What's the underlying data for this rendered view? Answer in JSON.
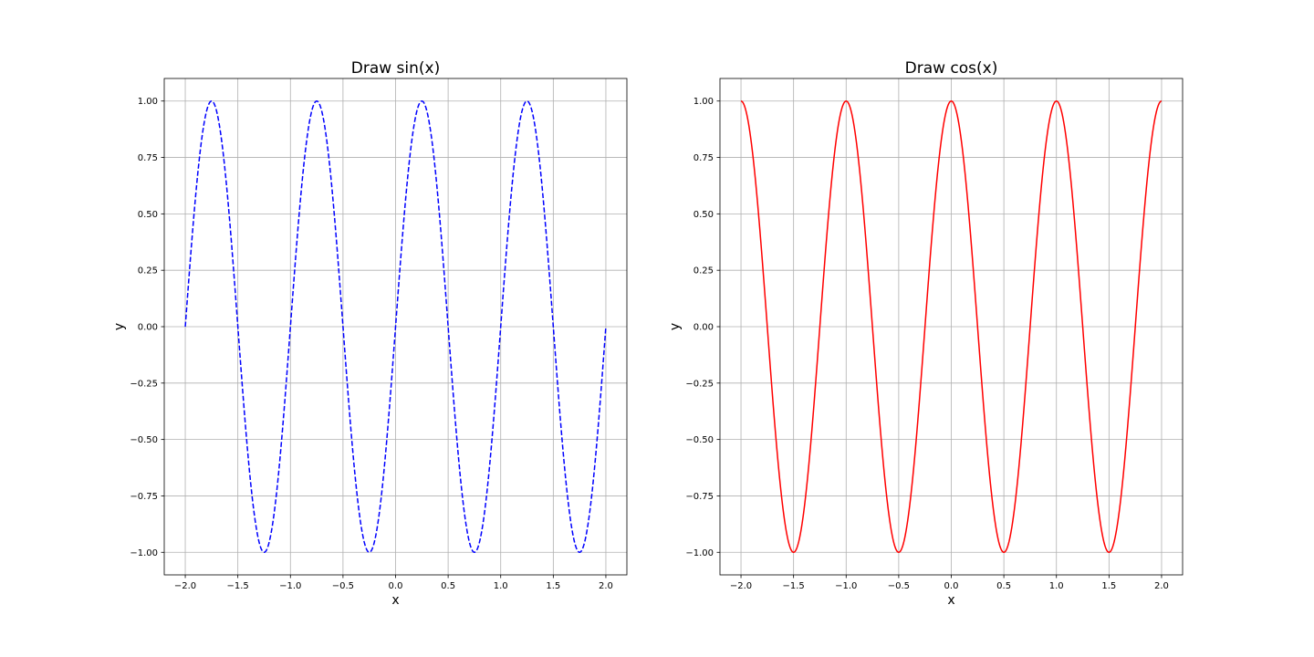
{
  "chart_data": [
    {
      "type": "line",
      "title": "Draw sin(x)",
      "xlabel": "x",
      "ylabel": "y",
      "xlim": [
        -2.2,
        2.2
      ],
      "ylim": [
        -1.1,
        1.1
      ],
      "grid": true,
      "xticks": [
        -2.0,
        -1.5,
        -1.0,
        -0.5,
        0.0,
        0.5,
        1.0,
        1.5,
        2.0
      ],
      "xtick_labels": [
        "−2.0",
        "−1.5",
        "−1.0",
        "−0.5",
        "0.0",
        "0.5",
        "1.0",
        "1.5",
        "2.0"
      ],
      "yticks": [
        1.0,
        0.75,
        0.5,
        0.25,
        0.0,
        -0.25,
        -0.5,
        -0.75,
        -1.0
      ],
      "ytick_labels": [
        "1.00",
        "0.75",
        "0.50",
        "0.25",
        "0.00",
        "−0.25",
        "−0.50",
        "−0.75",
        "−1.00"
      ],
      "series": [
        {
          "function": "sin(2*pi*x)",
          "x_range": [
            -2.0,
            2.0
          ],
          "color": "#0000ff",
          "linestyle": "dashed"
        }
      ]
    },
    {
      "type": "line",
      "title": "Draw cos(x)",
      "xlabel": "x",
      "ylabel": "y",
      "xlim": [
        -2.2,
        2.2
      ],
      "ylim": [
        -1.1,
        1.1
      ],
      "grid": true,
      "xticks": [
        -2.0,
        -1.5,
        -1.0,
        -0.5,
        0.0,
        0.5,
        1.0,
        1.5,
        2.0
      ],
      "xtick_labels": [
        "−2.0",
        "−1.5",
        "−1.0",
        "−0.5",
        "0.0",
        "0.5",
        "1.0",
        "1.5",
        "2.0"
      ],
      "yticks": [
        1.0,
        0.75,
        0.5,
        0.25,
        0.0,
        -0.25,
        -0.5,
        -0.75,
        -1.0
      ],
      "ytick_labels": [
        "1.00",
        "0.75",
        "0.50",
        "0.25",
        "0.00",
        "−0.25",
        "−0.50",
        "−0.75",
        "−1.00"
      ],
      "series": [
        {
          "function": "cos(2*pi*x)",
          "x_range": [
            -2.0,
            2.0
          ],
          "color": "#ff0000",
          "linestyle": "solid"
        }
      ]
    }
  ]
}
